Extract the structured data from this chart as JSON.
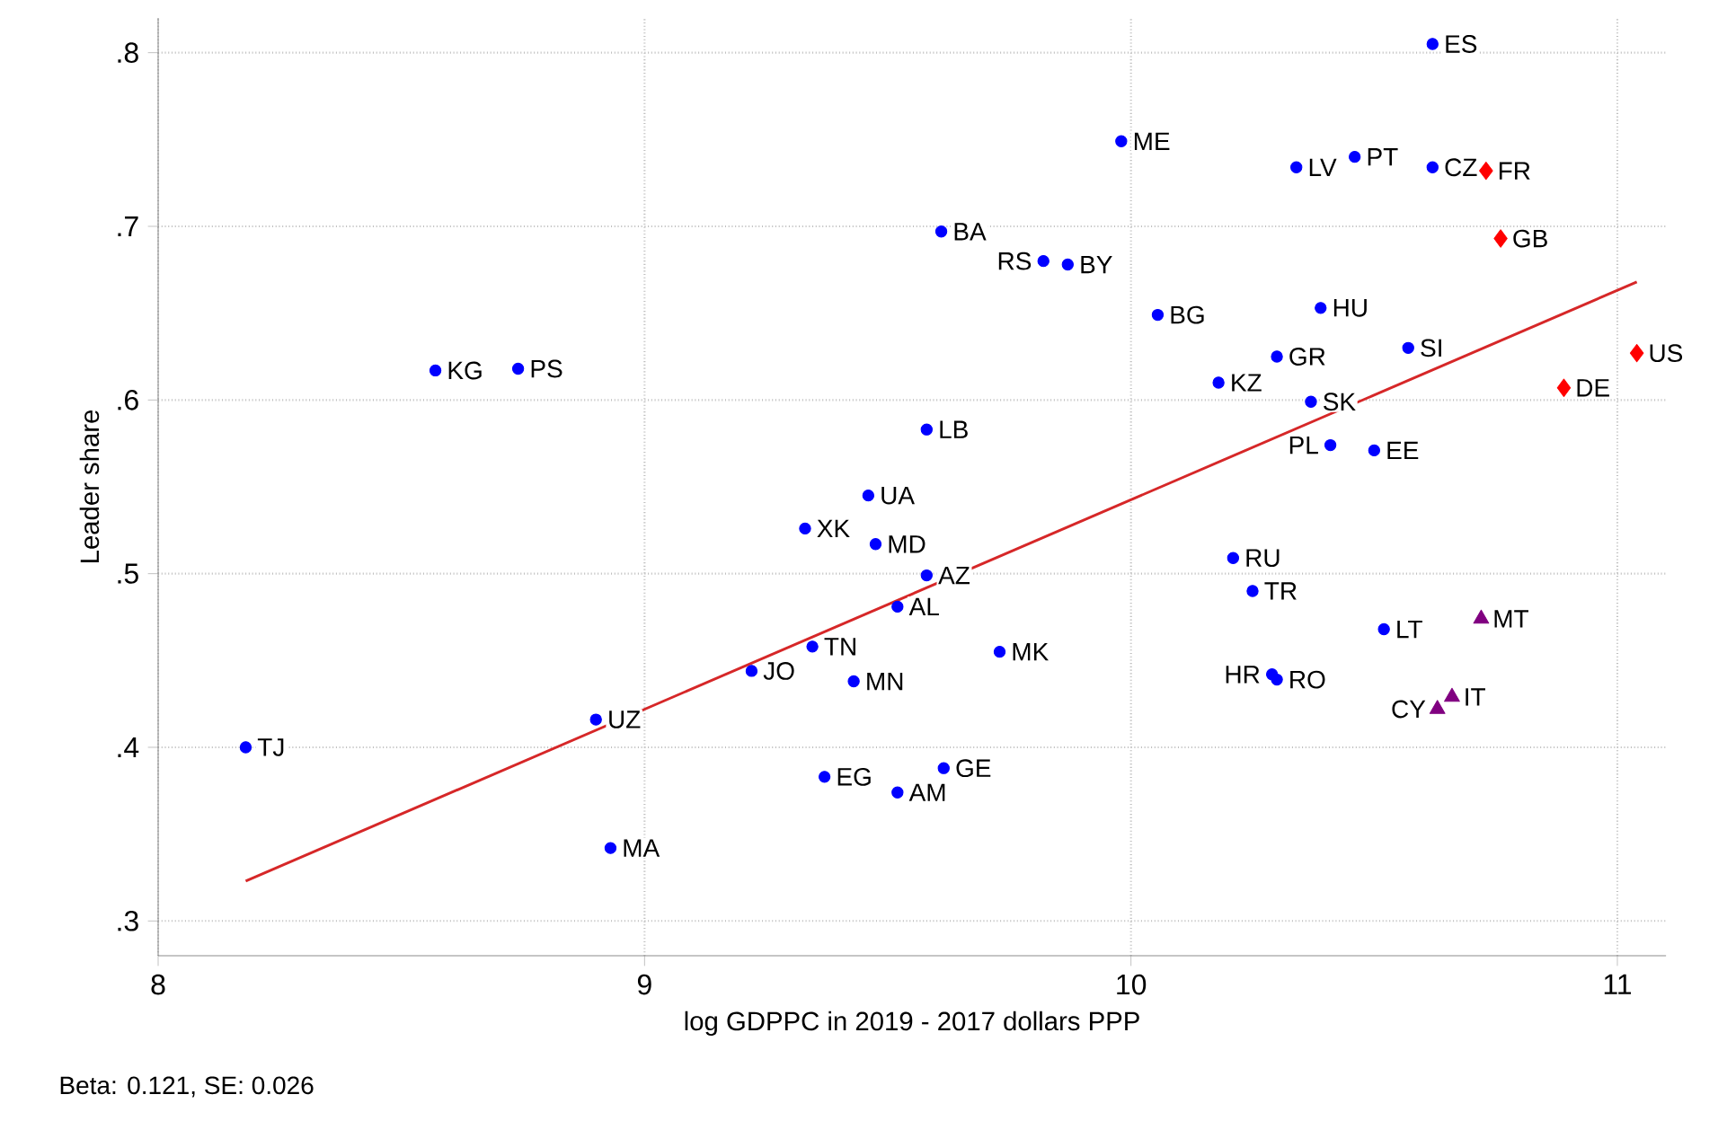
{
  "chart_data": {
    "type": "scatter",
    "xlabel": "log GDPPC in 2019 - 2017 dollars PPP",
    "ylabel": "Leader share",
    "xlim": [
      8,
      11.1
    ],
    "ylim": [
      0.28,
      0.82
    ],
    "xticks": [
      8,
      9,
      10,
      11
    ],
    "yticks": [
      {
        "value": 0.3,
        "label": ".3"
      },
      {
        "value": 0.4,
        "label": ".4"
      },
      {
        "value": 0.5,
        "label": ".5"
      },
      {
        "value": 0.6,
        "label": ".6"
      },
      {
        "value": 0.7,
        "label": ".7"
      },
      {
        "value": 0.8,
        "label": ".8"
      }
    ],
    "grid": true,
    "series": [
      {
        "color": "#0000ff",
        "marker": "circle",
        "x": [
          8.18,
          8.57,
          8.74,
          8.9,
          8.93,
          9.22,
          9.345,
          9.43,
          9.37,
          9.52,
          9.52,
          9.58,
          9.475,
          9.33,
          9.46,
          9.615,
          9.73,
          10.21,
          10.25,
          10.52,
          10.29,
          10.3,
          10.62,
          9.98,
          10.34,
          10.46,
          10.62,
          9.61,
          9.82,
          9.87,
          10.055,
          10.39,
          10.3,
          10.18,
          10.57,
          10.37,
          10.41,
          10.5,
          9.58
        ],
        "values": [
          0.4,
          0.617,
          0.618,
          0.416,
          0.342,
          0.444,
          0.458,
          0.438,
          0.383,
          0.374,
          0.481,
          0.499,
          0.517,
          0.526,
          0.545,
          0.388,
          0.455,
          0.509,
          0.49,
          0.468,
          0.442,
          0.439,
          0.805,
          0.749,
          0.734,
          0.74,
          0.734,
          0.697,
          0.68,
          0.678,
          0.649,
          0.653,
          0.625,
          0.61,
          0.63,
          0.599,
          0.574,
          0.571,
          0.583
        ]
      },
      {
        "color": "#ff0000",
        "marker": "diamond",
        "x": [
          10.73,
          10.76,
          11.04,
          10.89
        ],
        "values": [
          0.732,
          0.693,
          0.627,
          0.607
        ]
      },
      {
        "color": "#800080",
        "marker": "triangle",
        "x": [
          10.72,
          10.66,
          10.63
        ],
        "values": [
          0.474,
          0.429,
          0.422
        ]
      },
      {
        "type": "line",
        "color": "#d62728",
        "marker": "none",
        "line_style": "solid",
        "x": [
          8.18,
          11.04
        ],
        "values": [
          0.323,
          0.668
        ]
      }
    ],
    "annotations": [
      {
        "text": "TJ",
        "x": 8.18,
        "y": 0.4
      },
      {
        "text": "KG",
        "x": 8.57,
        "y": 0.617
      },
      {
        "text": "PS",
        "x": 8.74,
        "y": 0.618
      },
      {
        "text": "UZ",
        "x": 8.9,
        "y": 0.416
      },
      {
        "text": "MA",
        "x": 8.93,
        "y": 0.342
      },
      {
        "text": "JO",
        "x": 9.22,
        "y": 0.444
      },
      {
        "text": "TN",
        "x": 9.345,
        "y": 0.458
      },
      {
        "text": "MN",
        "x": 9.43,
        "y": 0.438
      },
      {
        "text": "EG",
        "x": 9.37,
        "y": 0.383
      },
      {
        "text": "AM",
        "x": 9.52,
        "y": 0.374
      },
      {
        "text": "AL",
        "x": 9.52,
        "y": 0.481
      },
      {
        "text": "AZ",
        "x": 9.58,
        "y": 0.499
      },
      {
        "text": "MD",
        "x": 9.475,
        "y": 0.517
      },
      {
        "text": "XK",
        "x": 9.33,
        "y": 0.526
      },
      {
        "text": "UA",
        "x": 9.46,
        "y": 0.545
      },
      {
        "text": "GE",
        "x": 9.615,
        "y": 0.388
      },
      {
        "text": "MK",
        "x": 9.73,
        "y": 0.455
      },
      {
        "text": "RU",
        "x": 10.21,
        "y": 0.509
      },
      {
        "text": "TR",
        "x": 10.25,
        "y": 0.49
      },
      {
        "text": "LT",
        "x": 10.52,
        "y": 0.468
      },
      {
        "text": "HR",
        "x": 10.29,
        "y": 0.442
      },
      {
        "text": "RO",
        "x": 10.3,
        "y": 0.439
      },
      {
        "text": "ES",
        "x": 10.62,
        "y": 0.805
      },
      {
        "text": "ME",
        "x": 9.98,
        "y": 0.749
      },
      {
        "text": "LV",
        "x": 10.34,
        "y": 0.734
      },
      {
        "text": "PT",
        "x": 10.46,
        "y": 0.74
      },
      {
        "text": "CZ",
        "x": 10.62,
        "y": 0.734
      },
      {
        "text": "BA",
        "x": 9.61,
        "y": 0.697
      },
      {
        "text": "RS",
        "x": 9.82,
        "y": 0.68
      },
      {
        "text": "BY",
        "x": 9.87,
        "y": 0.678
      },
      {
        "text": "BG",
        "x": 10.055,
        "y": 0.649
      },
      {
        "text": "HU",
        "x": 10.39,
        "y": 0.653
      },
      {
        "text": "GR",
        "x": 10.3,
        "y": 0.625
      },
      {
        "text": "KZ",
        "x": 10.18,
        "y": 0.61
      },
      {
        "text": "SI",
        "x": 10.57,
        "y": 0.63
      },
      {
        "text": "SK",
        "x": 10.37,
        "y": 0.599
      },
      {
        "text": "PL",
        "x": 10.41,
        "y": 0.574
      },
      {
        "text": "EE",
        "x": 10.5,
        "y": 0.571
      },
      {
        "text": "LB",
        "x": 9.58,
        "y": 0.583
      },
      {
        "text": "FR",
        "x": 10.73,
        "y": 0.732
      },
      {
        "text": "GB",
        "x": 10.76,
        "y": 0.693
      },
      {
        "text": "US",
        "x": 11.04,
        "y": 0.627
      },
      {
        "text": "DE",
        "x": 10.89,
        "y": 0.607
      },
      {
        "text": "MT",
        "x": 10.72,
        "y": 0.474
      },
      {
        "text": "IT",
        "x": 10.66,
        "y": 0.429
      },
      {
        "text": "CY",
        "x": 10.63,
        "y": 0.422
      },
      "Beta:  0.121, SE:  0.026"
    ]
  }
}
